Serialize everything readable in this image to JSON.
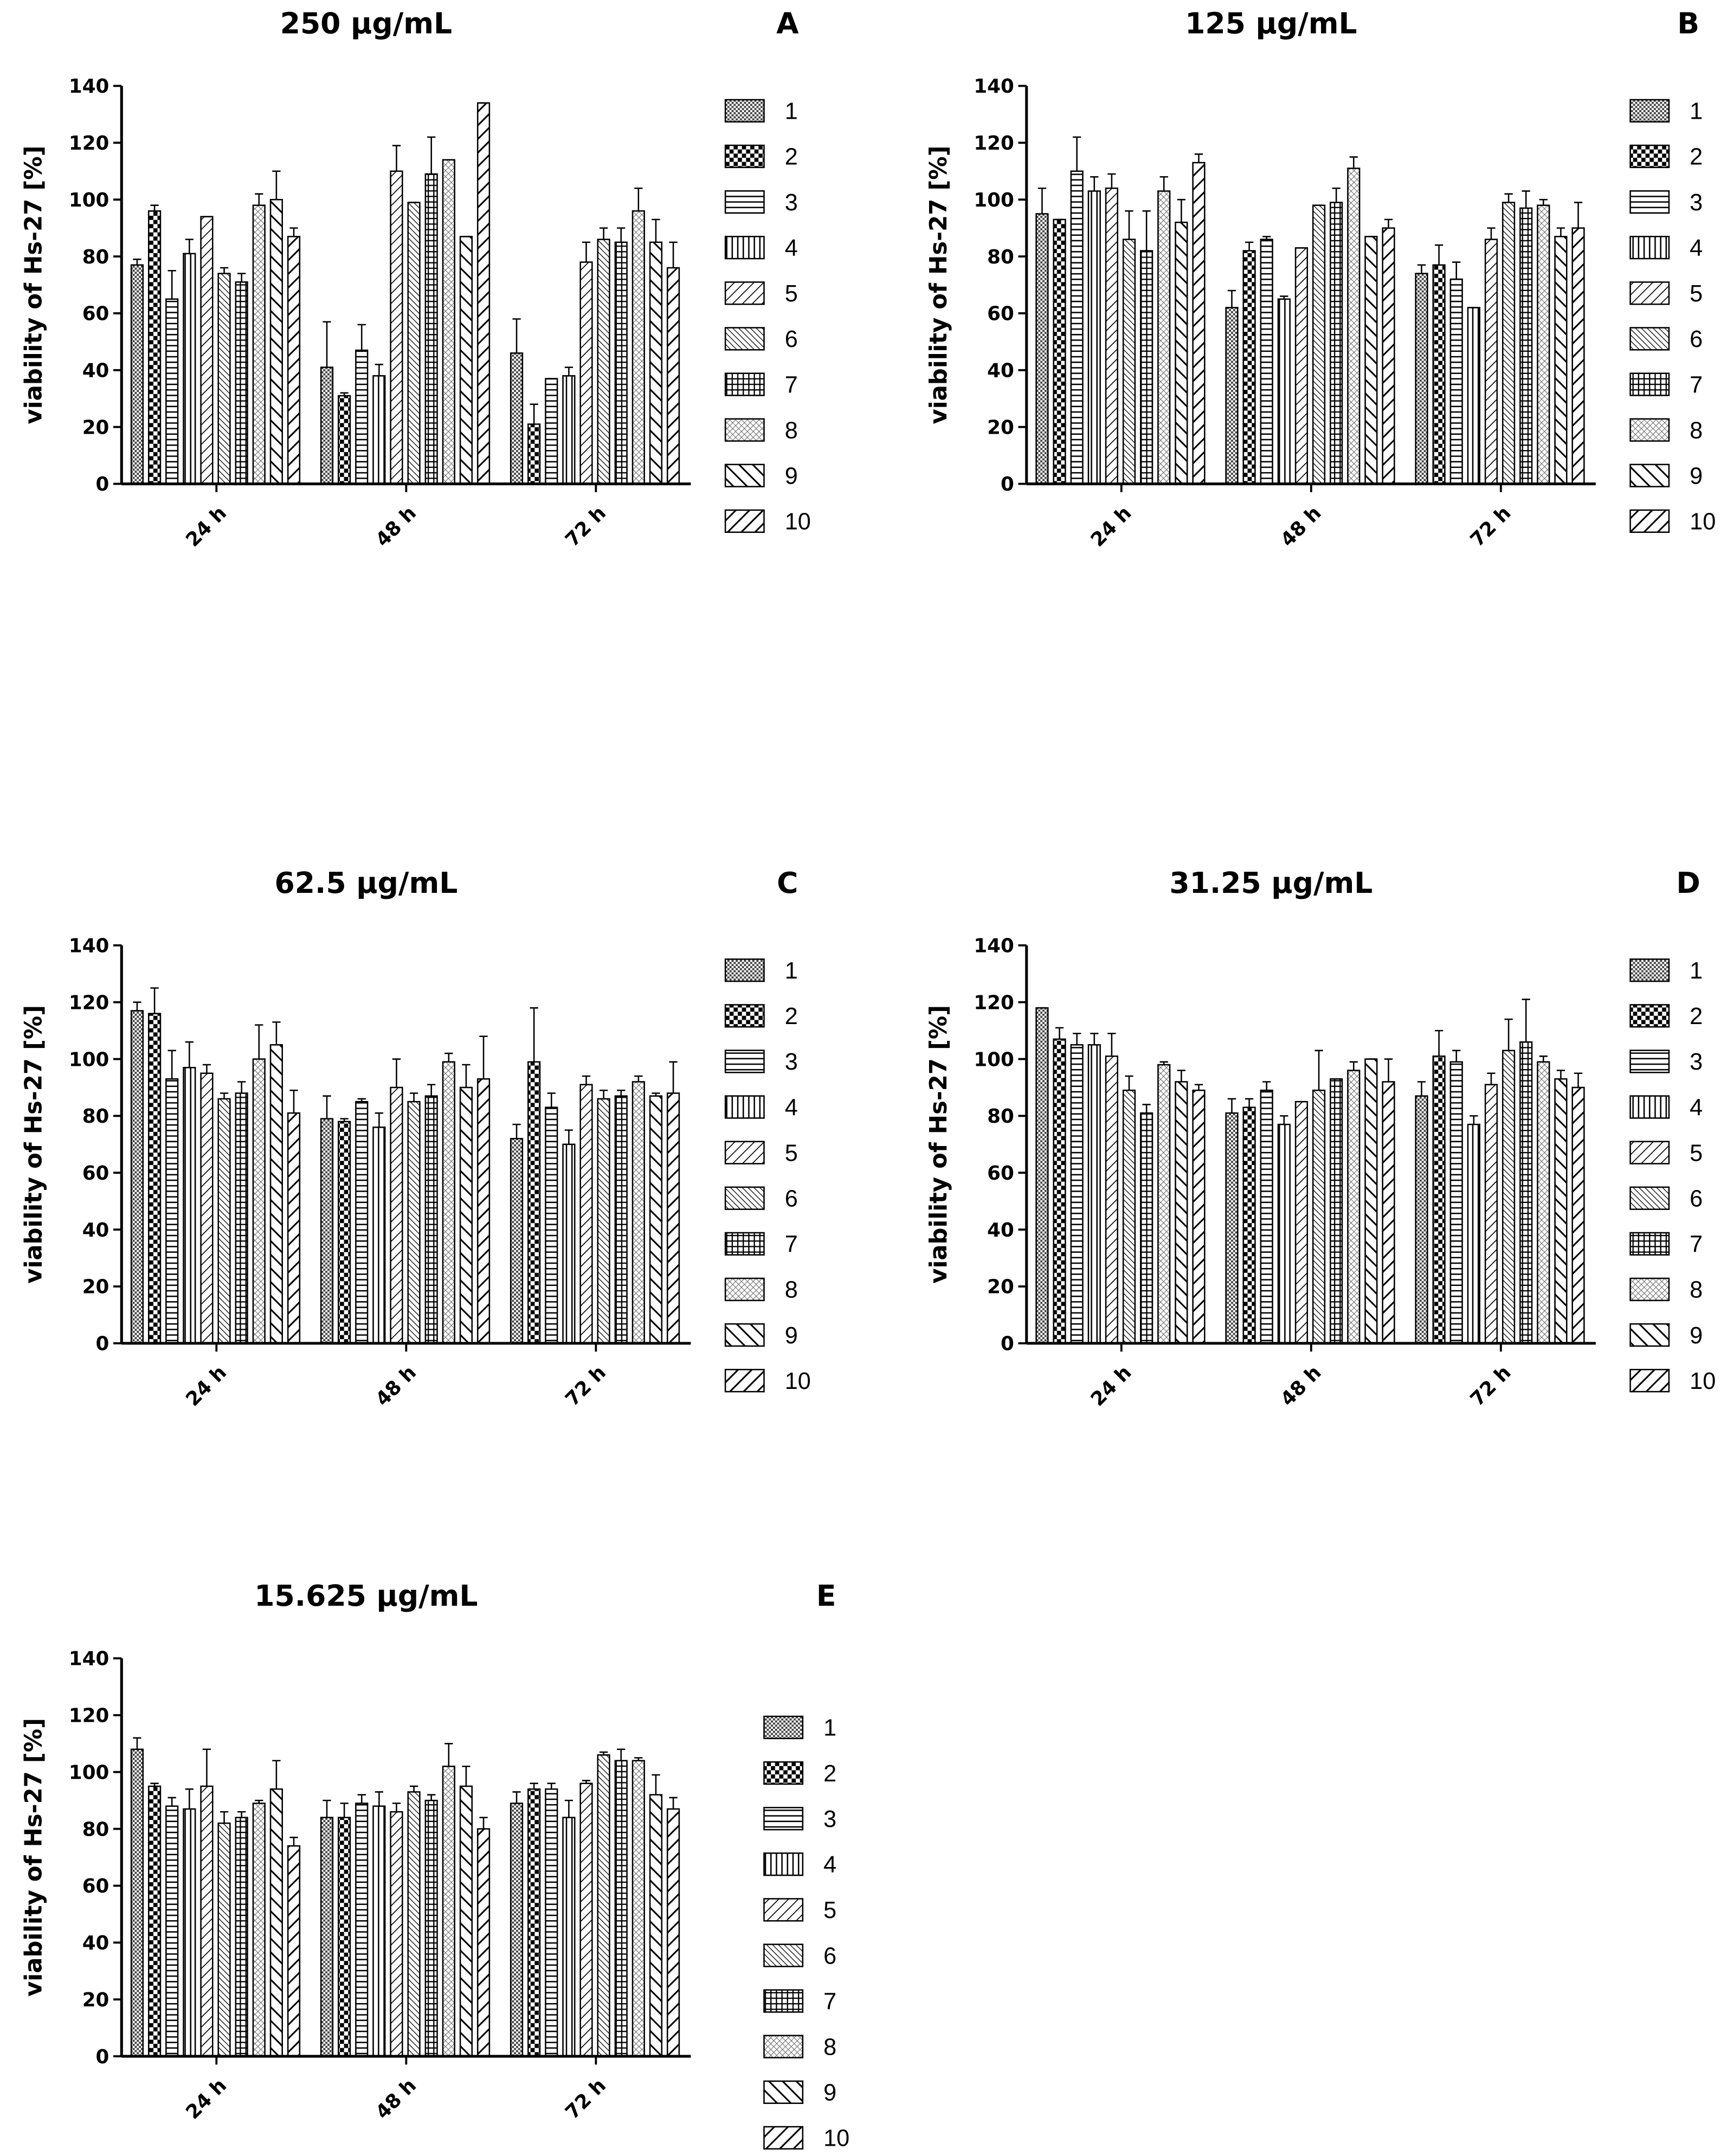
{
  "chart_data": [
    {
      "type": "bar",
      "title": "250 μg/mL",
      "label": "A",
      "y_label": "viability of Hs-27 [%]",
      "categories": [
        "24 h",
        "48 h",
        "72 h"
      ],
      "ylim": [
        0,
        140
      ],
      "yticks": [
        0,
        20,
        40,
        60,
        80,
        100,
        120,
        140
      ],
      "series": [
        {
          "name": "1",
          "values": [
            77,
            41,
            46
          ],
          "errors": [
            2,
            16,
            12
          ]
        },
        {
          "name": "2",
          "values": [
            96,
            31,
            21
          ],
          "errors": [
            2,
            1,
            7
          ]
        },
        {
          "name": "3",
          "values": [
            65,
            47,
            37
          ],
          "errors": [
            10,
            9,
            0
          ]
        },
        {
          "name": "4",
          "values": [
            81,
            38,
            38
          ],
          "errors": [
            5,
            4,
            3
          ]
        },
        {
          "name": "5",
          "values": [
            94,
            110,
            78
          ],
          "errors": [
            0,
            9,
            7
          ]
        },
        {
          "name": "6",
          "values": [
            74,
            99,
            86
          ],
          "errors": [
            2,
            0,
            4
          ]
        },
        {
          "name": "7",
          "values": [
            71,
            109,
            85
          ],
          "errors": [
            3,
            13,
            5
          ]
        },
        {
          "name": "8",
          "values": [
            98,
            114,
            96
          ],
          "errors": [
            4,
            0,
            8
          ]
        },
        {
          "name": "9",
          "values": [
            100,
            87,
            85
          ],
          "errors": [
            10,
            0,
            8
          ]
        },
        {
          "name": "10",
          "values": [
            87,
            134,
            76
          ],
          "errors": [
            3,
            0,
            9
          ]
        }
      ]
    },
    {
      "type": "bar",
      "title": "125 μg/mL",
      "label": "B",
      "y_label": "viability of Hs-27 [%]",
      "categories": [
        "24 h",
        "48 h",
        "72 h"
      ],
      "ylim": [
        0,
        140
      ],
      "yticks": [
        0,
        20,
        40,
        60,
        80,
        100,
        120,
        140
      ],
      "series": [
        {
          "name": "1",
          "values": [
            95,
            62,
            74
          ],
          "errors": [
            9,
            6,
            3
          ]
        },
        {
          "name": "2",
          "values": [
            93,
            82,
            77
          ],
          "errors": [
            0,
            3,
            7
          ]
        },
        {
          "name": "3",
          "values": [
            110,
            86,
            72
          ],
          "errors": [
            12,
            1,
            6
          ]
        },
        {
          "name": "4",
          "values": [
            103,
            65,
            62
          ],
          "errors": [
            5,
            1,
            0
          ]
        },
        {
          "name": "5",
          "values": [
            104,
            83,
            86
          ],
          "errors": [
            5,
            0,
            4
          ]
        },
        {
          "name": "6",
          "values": [
            86,
            98,
            99
          ],
          "errors": [
            10,
            0,
            3
          ]
        },
        {
          "name": "7",
          "values": [
            82,
            99,
            97
          ],
          "errors": [
            14,
            5,
            6
          ]
        },
        {
          "name": "8",
          "values": [
            103,
            111,
            98
          ],
          "errors": [
            5,
            4,
            2
          ]
        },
        {
          "name": "9",
          "values": [
            92,
            87,
            87
          ],
          "errors": [
            8,
            0,
            3
          ]
        },
        {
          "name": "10",
          "values": [
            113,
            90,
            90
          ],
          "errors": [
            3,
            3,
            9
          ]
        }
      ]
    },
    {
      "type": "bar",
      "title": "62.5 μg/mL",
      "label": "C",
      "y_label": "viability of Hs-27 [%]",
      "categories": [
        "24 h",
        "48 h",
        "72 h"
      ],
      "ylim": [
        0,
        140
      ],
      "yticks": [
        0,
        20,
        40,
        60,
        80,
        100,
        120,
        140
      ],
      "series": [
        {
          "name": "1",
          "values": [
            117,
            79,
            72
          ],
          "errors": [
            3,
            8,
            5
          ]
        },
        {
          "name": "2",
          "values": [
            116,
            78,
            99
          ],
          "errors": [
            9,
            1,
            19
          ]
        },
        {
          "name": "3",
          "values": [
            93,
            85,
            83
          ],
          "errors": [
            10,
            1,
            5
          ]
        },
        {
          "name": "4",
          "values": [
            97,
            76,
            70
          ],
          "errors": [
            9,
            5,
            5
          ]
        },
        {
          "name": "5",
          "values": [
            95,
            90,
            91
          ],
          "errors": [
            3,
            10,
            3
          ]
        },
        {
          "name": "6",
          "values": [
            86,
            85,
            86
          ],
          "errors": [
            2,
            3,
            3
          ]
        },
        {
          "name": "7",
          "values": [
            88,
            87,
            87
          ],
          "errors": [
            4,
            4,
            2
          ]
        },
        {
          "name": "8",
          "values": [
            100,
            99,
            92
          ],
          "errors": [
            12,
            3,
            2
          ]
        },
        {
          "name": "9",
          "values": [
            105,
            90,
            87
          ],
          "errors": [
            8,
            8,
            1
          ]
        },
        {
          "name": "10",
          "values": [
            81,
            93,
            88
          ],
          "errors": [
            8,
            15,
            11
          ]
        }
      ]
    },
    {
      "type": "bar",
      "title": "31.25 μg/mL",
      "label": "D",
      "y_label": "viability of Hs-27 [%]",
      "categories": [
        "24 h",
        "48 h",
        "72 h"
      ],
      "ylim": [
        0,
        140
      ],
      "yticks": [
        0,
        20,
        40,
        60,
        80,
        100,
        120,
        140
      ],
      "series": [
        {
          "name": "1",
          "values": [
            118,
            81,
            87
          ],
          "errors": [
            0,
            5,
            5
          ]
        },
        {
          "name": "2",
          "values": [
            107,
            83,
            101
          ],
          "errors": [
            4,
            3,
            9
          ]
        },
        {
          "name": "3",
          "values": [
            105,
            89,
            99
          ],
          "errors": [
            4,
            3,
            4
          ]
        },
        {
          "name": "4",
          "values": [
            105,
            77,
            77
          ],
          "errors": [
            4,
            3,
            3
          ]
        },
        {
          "name": "5",
          "values": [
            101,
            85,
            91
          ],
          "errors": [
            8,
            0,
            4
          ]
        },
        {
          "name": "6",
          "values": [
            89,
            89,
            103
          ],
          "errors": [
            5,
            14,
            11
          ]
        },
        {
          "name": "7",
          "values": [
            81,
            93,
            106
          ],
          "errors": [
            3,
            0,
            15
          ]
        },
        {
          "name": "8",
          "values": [
            98,
            96,
            99
          ],
          "errors": [
            1,
            3,
            2
          ]
        },
        {
          "name": "9",
          "values": [
            92,
            100,
            93
          ],
          "errors": [
            4,
            0,
            3
          ]
        },
        {
          "name": "10",
          "values": [
            89,
            92,
            90
          ],
          "errors": [
            2,
            8,
            5
          ]
        }
      ]
    },
    {
      "type": "bar",
      "title": "15.625 μg/mL",
      "label": "E",
      "y_label": "viability of Hs-27 [%]",
      "categories": [
        "24 h",
        "48 h",
        "72 h"
      ],
      "ylim": [
        0,
        140
      ],
      "yticks": [
        0,
        20,
        40,
        60,
        80,
        100,
        120,
        140
      ],
      "series": [
        {
          "name": "1",
          "values": [
            108,
            84,
            89
          ],
          "errors": [
            4,
            6,
            4
          ]
        },
        {
          "name": "2",
          "values": [
            95,
            84,
            94
          ],
          "errors": [
            1,
            5,
            2
          ]
        },
        {
          "name": "3",
          "values": [
            88,
            89,
            94
          ],
          "errors": [
            3,
            3,
            2
          ]
        },
        {
          "name": "4",
          "values": [
            87,
            88,
            84
          ],
          "errors": [
            7,
            5,
            6
          ]
        },
        {
          "name": "5",
          "values": [
            95,
            86,
            96
          ],
          "errors": [
            13,
            3,
            1
          ]
        },
        {
          "name": "6",
          "values": [
            82,
            93,
            106
          ],
          "errors": [
            4,
            2,
            1
          ]
        },
        {
          "name": "7",
          "values": [
            84,
            90,
            104
          ],
          "errors": [
            2,
            2,
            4
          ]
        },
        {
          "name": "8",
          "values": [
            89,
            102,
            104
          ],
          "errors": [
            1,
            8,
            1
          ]
        },
        {
          "name": "9",
          "values": [
            94,
            95,
            92
          ],
          "errors": [
            10,
            7,
            7
          ]
        },
        {
          "name": "10",
          "values": [
            74,
            80,
            87
          ],
          "errors": [
            3,
            4,
            4
          ]
        }
      ]
    }
  ]
}
